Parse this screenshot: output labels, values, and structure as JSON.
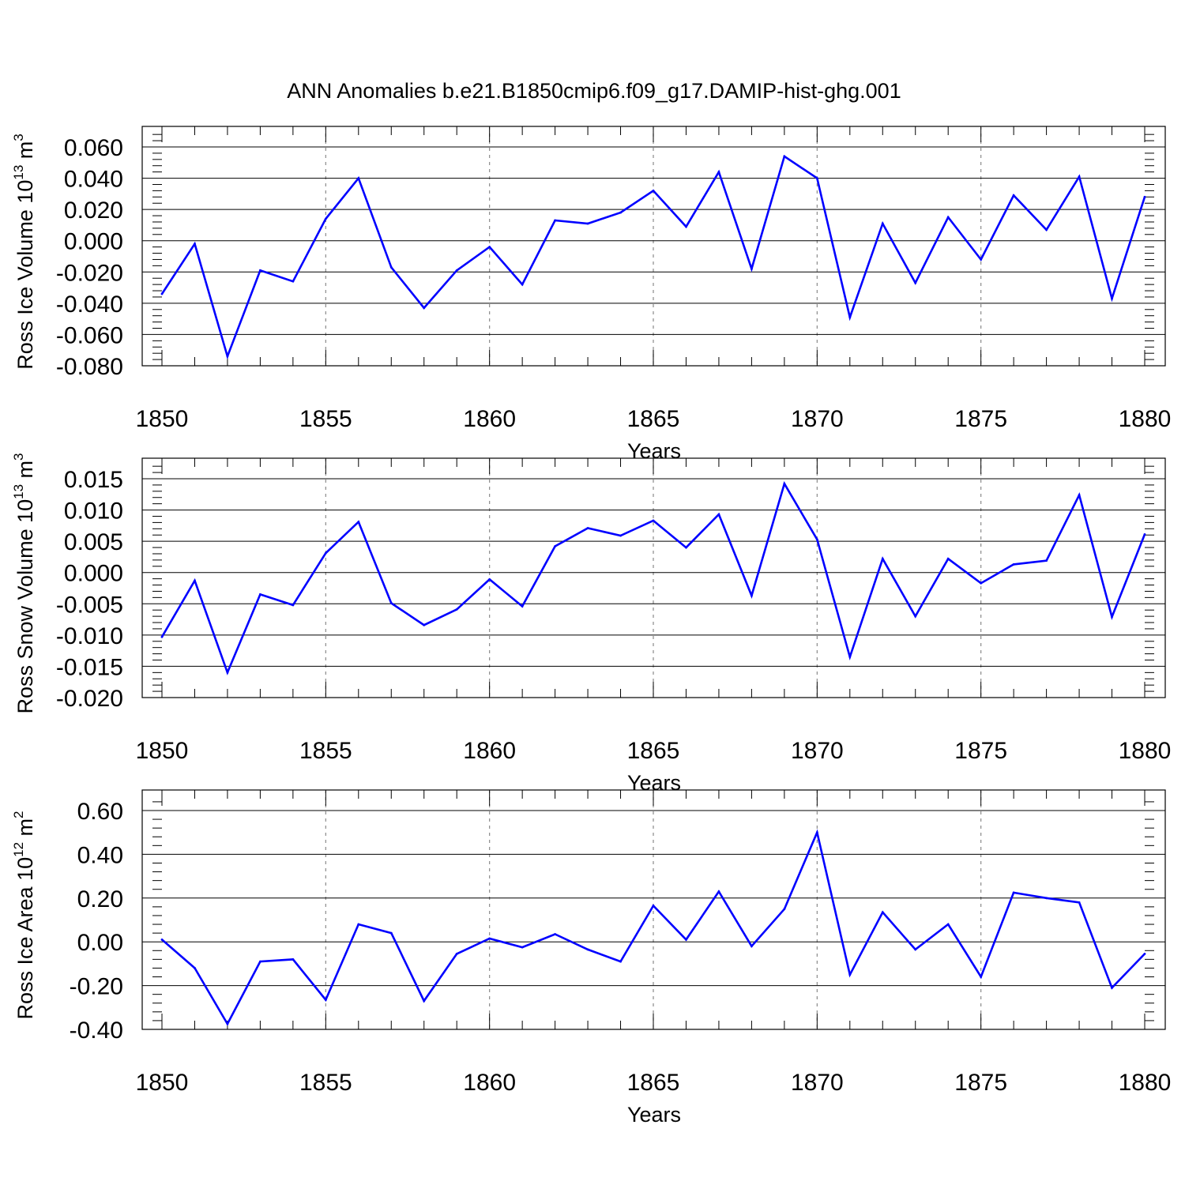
{
  "title": "ANN Anomalies b.e21.B1850cmip6.f09_g17.DAMIP-hist-ghg.001",
  "series_color": "#0000ff",
  "chart_data": [
    {
      "type": "line",
      "xlabel": "Years",
      "ylabel": {
        "text": "Ross Ice Volume 10",
        "sup": "13",
        "unit": " m",
        "unit_sup": "3"
      },
      "xlim": [
        1850,
        1880
      ],
      "ylim": [
        -0.08,
        0.07
      ],
      "xticks": [
        1850,
        1855,
        1860,
        1865,
        1870,
        1875,
        1880
      ],
      "xtick_labels": [
        "1850",
        "1855",
        "1860",
        "1865",
        "1870",
        "1875",
        "1880"
      ],
      "yticks": [
        -0.08,
        -0.06,
        -0.04,
        -0.02,
        0.0,
        0.02,
        0.04,
        0.06
      ],
      "ytick_labels": [
        "-0.080",
        "-0.060",
        "-0.040",
        "-0.020",
        "0.000",
        "0.020",
        "0.040",
        "0.060"
      ],
      "grid": "vertical dashed at major x ticks",
      "x": [
        1850,
        1851,
        1852,
        1853,
        1854,
        1855,
        1856,
        1857,
        1858,
        1859,
        1860,
        1861,
        1862,
        1863,
        1864,
        1865,
        1866,
        1867,
        1868,
        1869,
        1870,
        1871,
        1872,
        1873,
        1874,
        1875,
        1876,
        1877,
        1878,
        1879,
        1880
      ],
      "values": [
        -0.034,
        -0.002,
        -0.074,
        -0.019,
        -0.026,
        0.014,
        0.04,
        -0.017,
        -0.043,
        -0.019,
        -0.004,
        -0.028,
        0.013,
        0.011,
        0.018,
        0.032,
        0.009,
        0.044,
        -0.018,
        0.054,
        0.04,
        -0.049,
        0.011,
        -0.027,
        0.015,
        -0.012,
        0.029,
        0.007,
        0.041,
        -0.037,
        0.028
      ]
    },
    {
      "type": "line",
      "xlabel": "Years",
      "ylabel": {
        "text": "Ross Snow Volume 10",
        "sup": "13",
        "unit": " m",
        "unit_sup": "3"
      },
      "xlim": [
        1850,
        1880
      ],
      "ylim": [
        -0.02,
        0.018
      ],
      "xticks": [
        1850,
        1855,
        1860,
        1865,
        1870,
        1875,
        1880
      ],
      "xtick_labels": [
        "1850",
        "1855",
        "1860",
        "1865",
        "1870",
        "1875",
        "1880"
      ],
      "yticks": [
        -0.02,
        -0.015,
        -0.01,
        -0.005,
        0.0,
        0.005,
        0.01,
        0.015
      ],
      "ytick_labels": [
        "-0.020",
        "-0.015",
        "-0.010",
        "-0.005",
        "0.000",
        "0.005",
        "0.010",
        "0.015"
      ],
      "grid": "vertical dashed at major x ticks",
      "x": [
        1850,
        1851,
        1852,
        1853,
        1854,
        1855,
        1856,
        1857,
        1858,
        1859,
        1860,
        1861,
        1862,
        1863,
        1864,
        1865,
        1866,
        1867,
        1868,
        1869,
        1870,
        1871,
        1872,
        1873,
        1874,
        1875,
        1876,
        1877,
        1878,
        1879,
        1880
      ],
      "values": [
        -0.0103,
        -0.0013,
        -0.016,
        -0.0035,
        -0.0052,
        0.0031,
        0.0081,
        -0.0049,
        -0.0084,
        -0.0059,
        -0.0011,
        -0.0054,
        0.0042,
        0.0071,
        0.0059,
        0.0083,
        0.004,
        0.0093,
        -0.0037,
        0.0142,
        0.0053,
        -0.0135,
        0.0022,
        -0.007,
        0.0022,
        -0.0017,
        0.0013,
        0.0019,
        0.0124,
        -0.0071,
        0.0061
      ]
    },
    {
      "type": "line",
      "xlabel": "Years",
      "ylabel": {
        "text": "Ross Ice Area 10",
        "sup": "12",
        "unit": " m",
        "unit_sup": "2"
      },
      "xlim": [
        1850,
        1880
      ],
      "ylim": [
        -0.4,
        0.7
      ],
      "xticks": [
        1850,
        1855,
        1860,
        1865,
        1870,
        1875,
        1880
      ],
      "xtick_labels": [
        "1850",
        "1855",
        "1860",
        "1865",
        "1870",
        "1875",
        "1880"
      ],
      "yticks": [
        -0.4,
        -0.2,
        0.0,
        0.2,
        0.4,
        0.6
      ],
      "ytick_labels": [
        "-0.40",
        "-0.20",
        "0.00",
        "0.20",
        "0.40",
        "0.60"
      ],
      "grid": "vertical dashed at major x ticks",
      "x": [
        1850,
        1851,
        1852,
        1853,
        1854,
        1855,
        1856,
        1857,
        1858,
        1859,
        1860,
        1861,
        1862,
        1863,
        1864,
        1865,
        1866,
        1867,
        1868,
        1869,
        1870,
        1871,
        1872,
        1873,
        1874,
        1875,
        1876,
        1877,
        1878,
        1879,
        1880
      ],
      "values": [
        0.01,
        -0.12,
        -0.375,
        -0.09,
        -0.08,
        -0.265,
        0.08,
        0.04,
        -0.27,
        -0.055,
        0.015,
        -0.025,
        0.035,
        -0.035,
        -0.09,
        0.165,
        0.01,
        0.23,
        -0.02,
        0.15,
        0.5,
        -0.15,
        0.135,
        -0.035,
        0.08,
        -0.16,
        0.225,
        0.2,
        0.18,
        -0.21,
        -0.055
      ]
    }
  ]
}
